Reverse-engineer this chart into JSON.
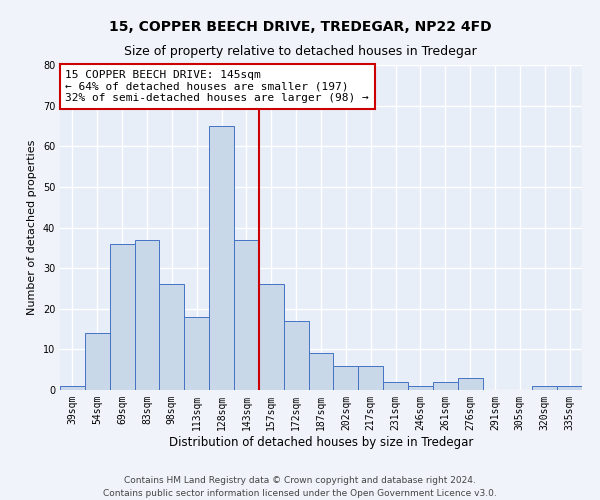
{
  "title1": "15, COPPER BEECH DRIVE, TREDEGAR, NP22 4FD",
  "title2": "Size of property relative to detached houses in Tredegar",
  "xlabel": "Distribution of detached houses by size in Tredegar",
  "ylabel": "Number of detached properties",
  "bar_labels": [
    "39sqm",
    "54sqm",
    "69sqm",
    "83sqm",
    "98sqm",
    "113sqm",
    "128sqm",
    "143sqm",
    "157sqm",
    "172sqm",
    "187sqm",
    "202sqm",
    "217sqm",
    "231sqm",
    "246sqm",
    "261sqm",
    "276sqm",
    "291sqm",
    "305sqm",
    "320sqm",
    "335sqm"
  ],
  "bar_values": [
    1,
    14,
    36,
    37,
    26,
    18,
    65,
    37,
    26,
    17,
    9,
    6,
    6,
    2,
    1,
    2,
    3,
    0,
    0,
    1,
    1
  ],
  "bar_color": "#c8d8e8",
  "bar_edge_color": "#4472c4",
  "vline_x_index": 7,
  "vline_color": "#cc0000",
  "annotation_lines": [
    "15 COPPER BEECH DRIVE: 145sqm",
    "← 64% of detached houses are smaller (197)",
    "32% of semi-detached houses are larger (98) →"
  ],
  "annotation_box_color": "#cc0000",
  "ylim": [
    0,
    80
  ],
  "yticks": [
    0,
    10,
    20,
    30,
    40,
    50,
    60,
    70,
    80
  ],
  "footer_line1": "Contains HM Land Registry data © Crown copyright and database right 2024.",
  "footer_line2": "Contains public sector information licensed under the Open Government Licence v3.0.",
  "bg_color": "#e8eef8",
  "grid_color": "#ffffff",
  "fig_bg_color": "#f0f4fa",
  "title1_fontsize": 10,
  "title2_fontsize": 9,
  "xlabel_fontsize": 8.5,
  "ylabel_fontsize": 8,
  "tick_fontsize": 7,
  "annotation_fontsize": 8,
  "footer_fontsize": 6.5
}
